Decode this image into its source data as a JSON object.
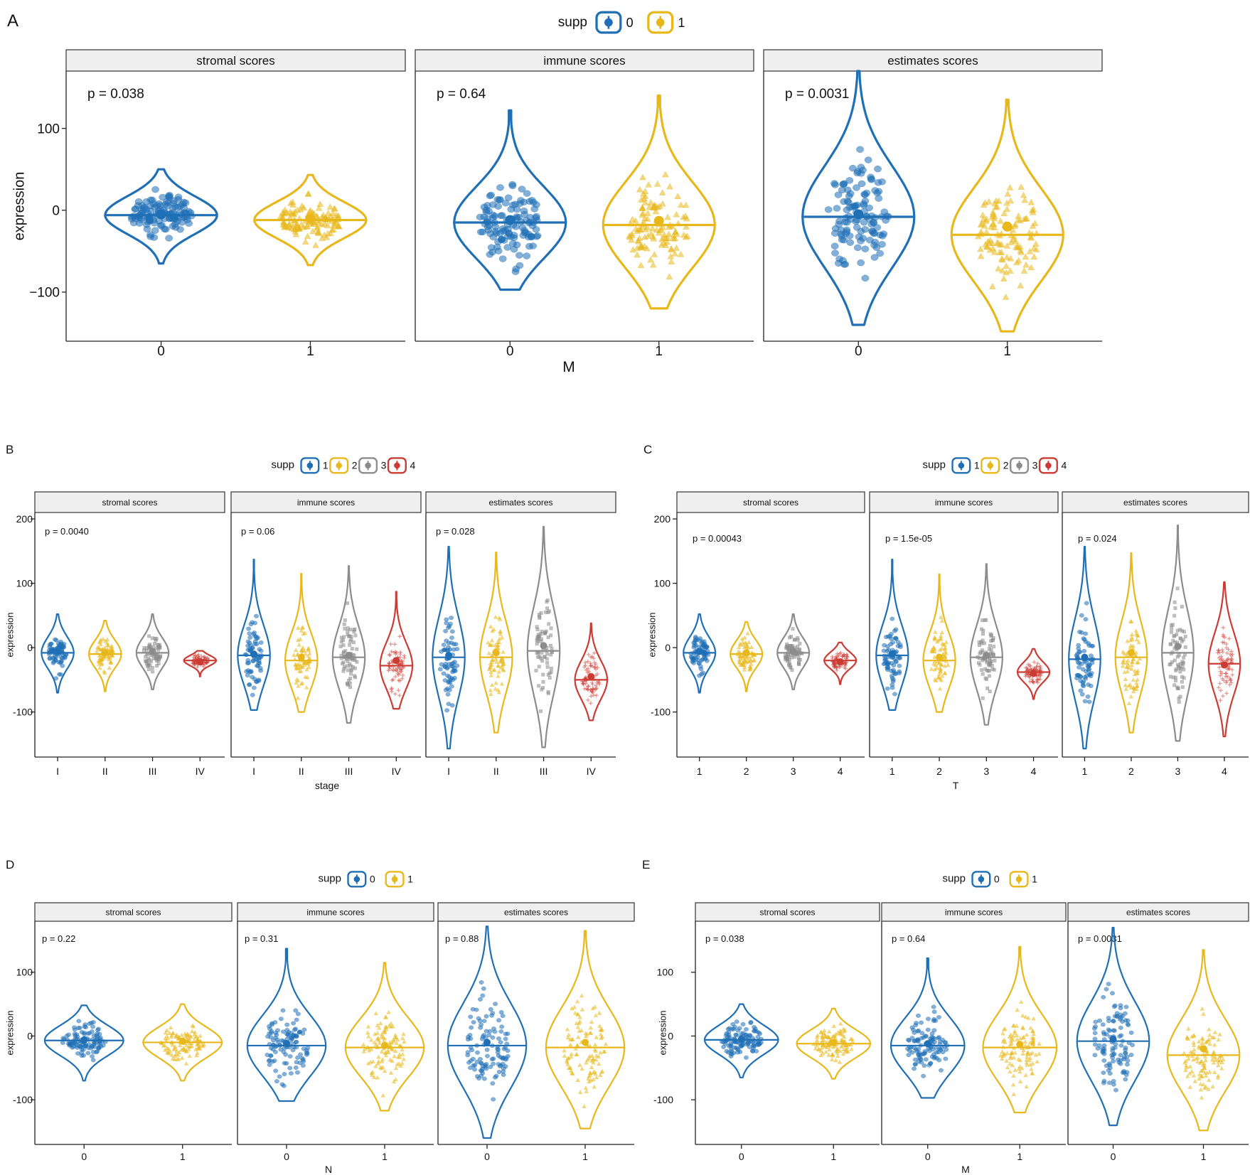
{
  "colors": {
    "blue": "#1f6fb6",
    "gold": "#e8b81b",
    "grey": "#8c8c8c",
    "red": "#cc3b33",
    "strip_fill": "#efefef",
    "strip_border": "#333333"
  },
  "chart_data": [
    {
      "type": "violin",
      "panel_label": "A",
      "legend_title": "supp",
      "legend_entries": [
        "0",
        "1"
      ],
      "xlabel": "M",
      "ylabel": "expression",
      "ylim": [
        -160,
        170
      ],
      "yticks": [
        "100",
        "0",
        "−100"
      ],
      "ytick_values": [
        100,
        0,
        -100
      ],
      "categories": [
        "0",
        "1"
      ],
      "facets": [
        {
          "title": "stromal scores",
          "p_label": "p = 0.038",
          "groups": [
            {
              "category": "0",
              "min": -65,
              "max": 50,
              "median": -6,
              "mean": -5
            },
            {
              "category": "1",
              "min": -67,
              "max": 43,
              "median": -12,
              "mean": -10
            }
          ]
        },
        {
          "title": "immune scores",
          "p_label": "p = 0.64",
          "groups": [
            {
              "category": "0",
              "min": -97,
              "max": 122,
              "median": -15,
              "mean": -12
            },
            {
              "category": "1",
              "min": -120,
              "max": 140,
              "median": -18,
              "mean": -13
            }
          ]
        },
        {
          "title": "estimates scores",
          "p_label": "p = 0.0031",
          "groups": [
            {
              "category": "0",
              "min": -140,
              "max": 170,
              "median": -8,
              "mean": -5
            },
            {
              "category": "1",
              "min": -148,
              "max": 135,
              "median": -30,
              "mean": -20
            }
          ]
        }
      ]
    },
    {
      "type": "violin",
      "panel_label": "B",
      "legend_title": "supp",
      "legend_entries": [
        "1",
        "2",
        "3",
        "4"
      ],
      "xlabel": "stage",
      "ylabel": "expression",
      "ylim": [
        -170,
        210
      ],
      "yticks": [
        "200",
        "100",
        "0",
        "-100"
      ],
      "ytick_values": [
        200,
        100,
        0,
        -100
      ],
      "categories": [
        "I",
        "II",
        "III",
        "IV"
      ],
      "facets": [
        {
          "title": "stromal scores",
          "p_label": "p = 0.0040",
          "groups": [
            {
              "category": "I",
              "min": -70,
              "max": 52,
              "median": -8,
              "mean": -6
            },
            {
              "category": "II",
              "min": -68,
              "max": 42,
              "median": -10,
              "mean": -8
            },
            {
              "category": "III",
              "min": -65,
              "max": 52,
              "median": -8,
              "mean": -6
            },
            {
              "category": "IV",
              "min": -45,
              "max": -5,
              "median": -20,
              "mean": -22
            }
          ]
        },
        {
          "title": "immune scores",
          "p_label": "p = 0.06",
          "groups": [
            {
              "category": "I",
              "min": -97,
              "max": 137,
              "median": -12,
              "mean": -10
            },
            {
              "category": "II",
              "min": -100,
              "max": 115,
              "median": -20,
              "mean": -15
            },
            {
              "category": "III",
              "min": -117,
              "max": 127,
              "median": -15,
              "mean": -12
            },
            {
              "category": "IV",
              "min": -95,
              "max": 87,
              "median": -28,
              "mean": -20
            }
          ]
        },
        {
          "title": "estimates scores",
          "p_label": "p = 0.028",
          "groups": [
            {
              "category": "I",
              "min": -157,
              "max": 157,
              "median": -15,
              "mean": -12
            },
            {
              "category": "II",
              "min": -132,
              "max": 148,
              "median": -15,
              "mean": -8
            },
            {
              "category": "III",
              "min": -155,
              "max": 188,
              "median": -5,
              "mean": 3
            },
            {
              "category": "IV",
              "min": -113,
              "max": 38,
              "median": -50,
              "mean": -45
            }
          ]
        }
      ]
    },
    {
      "type": "violin",
      "panel_label": "C",
      "legend_title": "supp",
      "legend_entries": [
        "1",
        "2",
        "3",
        "4"
      ],
      "xlabel": "T",
      "ylabel": "expression",
      "ylim": [
        -170,
        210
      ],
      "yticks": [
        "200",
        "100",
        "0",
        "-100"
      ],
      "ytick_values": [
        200,
        100,
        0,
        -100
      ],
      "categories": [
        "1",
        "2",
        "3",
        "4"
      ],
      "facets": [
        {
          "title": "stromal scores",
          "p_label": "p = 0.00043",
          "groups": [
            {
              "category": "1",
              "min": -70,
              "max": 52,
              "median": -8,
              "mean": -6
            },
            {
              "category": "2",
              "min": -68,
              "max": 40,
              "median": -10,
              "mean": -8
            },
            {
              "category": "3",
              "min": -65,
              "max": 52,
              "median": -8,
              "mean": -6
            },
            {
              "category": "4",
              "min": -57,
              "max": 8,
              "median": -20,
              "mean": -22
            }
          ]
        },
        {
          "title": "immune scores",
          "p_label": "p = 1.5e-05",
          "groups": [
            {
              "category": "1",
              "min": -97,
              "max": 137,
              "median": -12,
              "mean": -10
            },
            {
              "category": "2",
              "min": -100,
              "max": 114,
              "median": -20,
              "mean": -15
            },
            {
              "category": "3",
              "min": -120,
              "max": 130,
              "median": -15,
              "mean": -12
            },
            {
              "category": "4",
              "min": -80,
              "max": -2,
              "median": -38,
              "mean": -40
            }
          ]
        },
        {
          "title": "estimates scores",
          "p_label": "p = 0.024",
          "groups": [
            {
              "category": "1",
              "min": -157,
              "max": 157,
              "median": -18,
              "mean": -15
            },
            {
              "category": "2",
              "min": -132,
              "max": 147,
              "median": -15,
              "mean": -8
            },
            {
              "category": "3",
              "min": -145,
              "max": 190,
              "median": -8,
              "mean": 2
            },
            {
              "category": "4",
              "min": -138,
              "max": 102,
              "median": -25,
              "mean": -27
            }
          ]
        }
      ]
    },
    {
      "type": "violin",
      "panel_label": "D",
      "legend_title": "supp",
      "legend_entries": [
        "0",
        "1"
      ],
      "xlabel": "N",
      "ylabel": "expression",
      "ylim": [
        -170,
        180
      ],
      "yticks": [
        "100",
        "0",
        "-100"
      ],
      "ytick_values": [
        100,
        0,
        -100
      ],
      "categories": [
        "0",
        "1"
      ],
      "facets": [
        {
          "title": "stromal scores",
          "p_label": "p = 0.22",
          "groups": [
            {
              "category": "0",
              "min": -70,
              "max": 48,
              "median": -7,
              "mean": -6
            },
            {
              "category": "1",
              "min": -70,
              "max": 50,
              "median": -10,
              "mean": -8
            }
          ]
        },
        {
          "title": "immune scores",
          "p_label": "p = 0.31",
          "groups": [
            {
              "category": "0",
              "min": -102,
              "max": 137,
              "median": -15,
              "mean": -12
            },
            {
              "category": "1",
              "min": -117,
              "max": 115,
              "median": -18,
              "mean": -15
            }
          ]
        },
        {
          "title": "estimates scores",
          "p_label": "p = 0.88",
          "groups": [
            {
              "category": "0",
              "min": -160,
              "max": 172,
              "median": -15,
              "mean": -10
            },
            {
              "category": "1",
              "min": -145,
              "max": 165,
              "median": -18,
              "mean": -10
            }
          ]
        }
      ]
    },
    {
      "type": "violin",
      "panel_label": "E",
      "legend_title": "supp",
      "legend_entries": [
        "0",
        "1"
      ],
      "xlabel": "M",
      "ylabel": "expression",
      "ylim": [
        -170,
        180
      ],
      "yticks": [
        "100",
        "0",
        "-100"
      ],
      "ytick_values": [
        100,
        0,
        -100
      ],
      "categories": [
        "0",
        "1"
      ],
      "facets": [
        {
          "title": "stromal scores",
          "p_label": "p = 0.038",
          "groups": [
            {
              "category": "0",
              "min": -65,
              "max": 50,
              "median": -6,
              "mean": -5
            },
            {
              "category": "1",
              "min": -67,
              "max": 43,
              "median": -12,
              "mean": -10
            }
          ]
        },
        {
          "title": "immune scores",
          "p_label": "p = 0.64",
          "groups": [
            {
              "category": "0",
              "min": -97,
              "max": 122,
              "median": -15,
              "mean": -12
            },
            {
              "category": "1",
              "min": -120,
              "max": 140,
              "median": -18,
              "mean": -13
            }
          ]
        },
        {
          "title": "estimates scores",
          "p_label": "p = 0.0031",
          "groups": [
            {
              "category": "0",
              "min": -140,
              "max": 170,
              "median": -8,
              "mean": -5
            },
            {
              "category": "1",
              "min": -148,
              "max": 135,
              "median": -30,
              "mean": -20
            }
          ]
        }
      ]
    }
  ]
}
